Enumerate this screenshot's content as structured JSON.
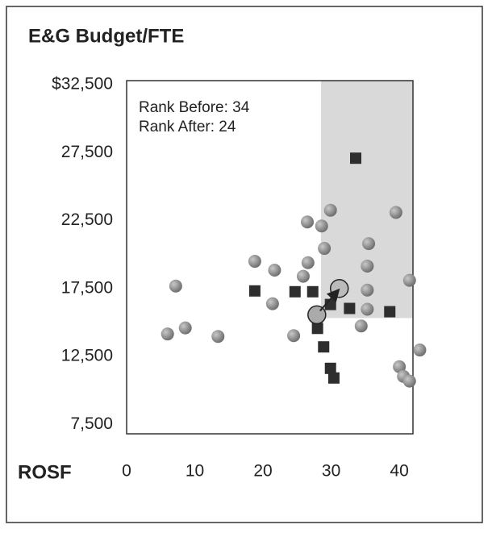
{
  "chart_data": {
    "type": "scatter",
    "title": "E&G Budget/FTE",
    "xlabel": "ROSF",
    "annotations": [
      "Rank Before: 34",
      "Rank After: 24"
    ],
    "xlim": [
      0,
      42
    ],
    "ylim": [
      6800,
      32800
    ],
    "xticks": [
      0,
      10,
      20,
      30,
      40
    ],
    "yticks": [
      {
        "value": 32500,
        "label": "$32,500"
      },
      {
        "value": 27500,
        "label": "27,500"
      },
      {
        "value": 22500,
        "label": "22,500"
      },
      {
        "value": 17500,
        "label": "17,500"
      },
      {
        "value": 12500,
        "label": "12,500"
      },
      {
        "value": 7500,
        "label": "7,500"
      }
    ],
    "highlight_region": {
      "x": 28.5,
      "y": 15320,
      "color": "#d9d9d9"
    },
    "series": [
      {
        "marker": "circle",
        "color": "#8c8c8c",
        "x": [
          7.2,
          6.0,
          8.6,
          13.4,
          18.8,
          21.7,
          21.4,
          24.5,
          25.9,
          26.6,
          26.5,
          28.6,
          29.9,
          29.0,
          35.5,
          35.3,
          35.3,
          35.3,
          34.4,
          39.5,
          41.5,
          40.0,
          40.6,
          41.5,
          43.0
        ],
        "y": [
          17680,
          14150,
          14600,
          13970,
          19500,
          18850,
          16380,
          14030,
          18400,
          19400,
          22400,
          22100,
          23260,
          20450,
          20800,
          19150,
          17380,
          15970,
          14740,
          23100,
          18100,
          11740,
          11030,
          10680,
          12970
        ]
      },
      {
        "marker": "square",
        "color": "#2e2e2e",
        "x": [
          33.6,
          18.8,
          24.7,
          27.3,
          29.9,
          32.7,
          38.6,
          28.0,
          28.9,
          29.9,
          30.4
        ],
        "y": [
          27090,
          17320,
          17260,
          17260,
          16320,
          16030,
          15790,
          14560,
          13200,
          11620,
          10910
        ]
      }
    ],
    "before": {
      "x": 27.9,
      "y": 15560
    },
    "after": {
      "x": 31.2,
      "y": 17500
    }
  }
}
